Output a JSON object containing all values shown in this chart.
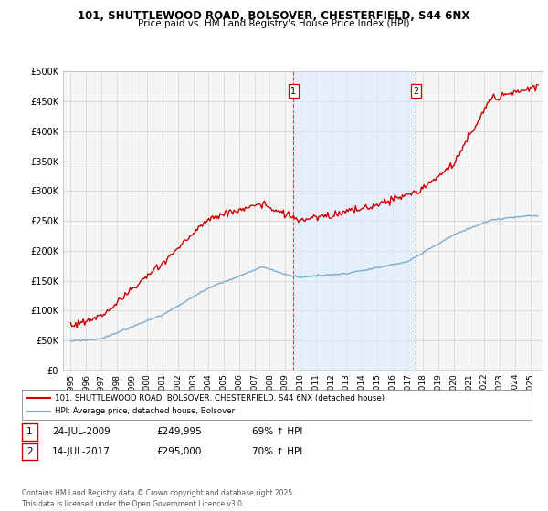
{
  "title": "101, SHUTTLEWOOD ROAD, BOLSOVER, CHESTERFIELD, S44 6NX",
  "subtitle": "Price paid vs. HM Land Registry's House Price Index (HPI)",
  "legend_label_red": "101, SHUTTLEWOOD ROAD, BOLSOVER, CHESTERFIELD, S44 6NX (detached house)",
  "legend_label_blue": "HPI: Average price, detached house, Bolsover",
  "transactions": [
    {
      "num": 1,
      "date": "24-JUL-2009",
      "price": "£249,995",
      "hpi": "69% ↑ HPI",
      "year": 2009.55
    },
    {
      "num": 2,
      "date": "14-JUL-2017",
      "price": "£295,000",
      "hpi": "70% ↑ HPI",
      "year": 2017.53
    }
  ],
  "footer": "Contains HM Land Registry data © Crown copyright and database right 2025.\nThis data is licensed under the Open Government Licence v3.0.",
  "red_color": "#cc0000",
  "blue_color": "#7aadce",
  "span_color": "#ddeeff",
  "background_color": "#ffffff",
  "grid_color": "#cccccc",
  "ylim": [
    0,
    500000
  ],
  "yticks": [
    0,
    50000,
    100000,
    150000,
    200000,
    250000,
    300000,
    350000,
    400000,
    450000,
    500000
  ],
  "xmin": 1994.5,
  "xmax": 2025.8
}
